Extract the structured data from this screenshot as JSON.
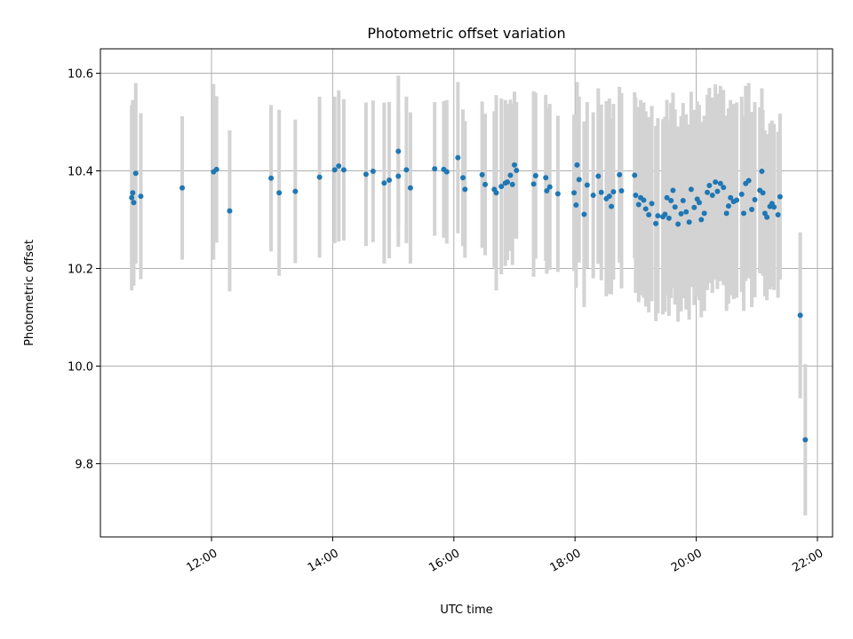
{
  "chart_data": {
    "type": "scatter",
    "title": "Photometric offset variation",
    "xlabel": "UTC time",
    "ylabel": "Photometric offset",
    "xlim": [
      "10:10",
      "22:15"
    ],
    "ylim": [
      9.65,
      10.65
    ],
    "grid": true,
    "x_ticks": [
      "12:00",
      "14:00",
      "16:00",
      "18:00",
      "20:00",
      "22:00"
    ],
    "y_ticks": [
      9.8,
      10.0,
      10.2,
      10.4,
      10.6
    ],
    "colors": {
      "points": "#1f77b4",
      "errorbars": "#d3d3d3"
    },
    "points": [
      {
        "x": "10:41",
        "y": 10.345,
        "err": 0.19
      },
      {
        "x": "10:42",
        "y": 10.355,
        "err": 0.19
      },
      {
        "x": "10:43",
        "y": 10.335,
        "err": 0.17
      },
      {
        "x": "10:45",
        "y": 10.395,
        "err": 0.185
      },
      {
        "x": "10:50",
        "y": 10.348,
        "err": 0.17
      },
      {
        "x": "11:31",
        "y": 10.365,
        "err": 0.147
      },
      {
        "x": "12:02",
        "y": 10.398,
        "err": 0.18
      },
      {
        "x": "12:05",
        "y": 10.403,
        "err": 0.15
      },
      {
        "x": "12:18",
        "y": 10.318,
        "err": 0.165
      },
      {
        "x": "12:59",
        "y": 10.385,
        "err": 0.15
      },
      {
        "x": "13:07",
        "y": 10.355,
        "err": 0.17
      },
      {
        "x": "13:23",
        "y": 10.358,
        "err": 0.147
      },
      {
        "x": "13:47",
        "y": 10.387,
        "err": 0.165
      },
      {
        "x": "14:02",
        "y": 10.402,
        "err": 0.15
      },
      {
        "x": "14:06",
        "y": 10.41,
        "err": 0.155
      },
      {
        "x": "14:11",
        "y": 10.402,
        "err": 0.145
      },
      {
        "x": "14:33",
        "y": 10.393,
        "err": 0.147
      },
      {
        "x": "14:40",
        "y": 10.399,
        "err": 0.145
      },
      {
        "x": "14:51",
        "y": 10.375,
        "err": 0.165
      },
      {
        "x": "14:56",
        "y": 10.381,
        "err": 0.16
      },
      {
        "x": "15:05",
        "y": 10.389,
        "err": 0.145
      },
      {
        "x": "15:05",
        "y": 10.44,
        "err": 0.155
      },
      {
        "x": "15:13",
        "y": 10.402,
        "err": 0.15
      },
      {
        "x": "15:17",
        "y": 10.365,
        "err": 0.155
      },
      {
        "x": "15:41",
        "y": 10.404,
        "err": 0.137
      },
      {
        "x": "15:50",
        "y": 10.403,
        "err": 0.14
      },
      {
        "x": "15:53",
        "y": 10.398,
        "err": 0.147
      },
      {
        "x": "16:04",
        "y": 10.427,
        "err": 0.155
      },
      {
        "x": "16:09",
        "y": 10.386,
        "err": 0.14
      },
      {
        "x": "16:11",
        "y": 10.362,
        "err": 0.14
      },
      {
        "x": "16:28",
        "y": 10.392,
        "err": 0.15
      },
      {
        "x": "16:31",
        "y": 10.372,
        "err": 0.145
      },
      {
        "x": "16:40",
        "y": 10.362,
        "err": 0.16
      },
      {
        "x": "16:42",
        "y": 10.355,
        "err": 0.2
      },
      {
        "x": "16:47",
        "y": 10.368,
        "err": 0.18
      },
      {
        "x": "16:51",
        "y": 10.375,
        "err": 0.17
      },
      {
        "x": "16:53",
        "y": 10.377,
        "err": 0.16
      },
      {
        "x": "16:56",
        "y": 10.391,
        "err": 0.155
      },
      {
        "x": "16:58",
        "y": 10.372,
        "err": 0.165
      },
      {
        "x": "17:00",
        "y": 10.412,
        "err": 0.15
      },
      {
        "x": "17:02",
        "y": 10.401,
        "err": 0.14
      },
      {
        "x": "17:19",
        "y": 10.373,
        "err": 0.19
      },
      {
        "x": "17:21",
        "y": 10.39,
        "err": 0.17
      },
      {
        "x": "17:31",
        "y": 10.386,
        "err": 0.17
      },
      {
        "x": "17:32",
        "y": 10.359,
        "err": 0.17
      },
      {
        "x": "17:35",
        "y": 10.367,
        "err": 0.17
      },
      {
        "x": "17:43",
        "y": 10.353,
        "err": 0.16
      },
      {
        "x": "17:59",
        "y": 10.355,
        "err": 0.16
      },
      {
        "x": "18:01",
        "y": 10.33,
        "err": 0.17
      },
      {
        "x": "18:02",
        "y": 10.412,
        "err": 0.17
      },
      {
        "x": "18:04",
        "y": 10.382,
        "err": 0.17
      },
      {
        "x": "18:09",
        "y": 10.311,
        "err": 0.19
      },
      {
        "x": "18:12",
        "y": 10.371,
        "err": 0.17
      },
      {
        "x": "18:18",
        "y": 10.35,
        "err": 0.17
      },
      {
        "x": "18:23",
        "y": 10.389,
        "err": 0.18
      },
      {
        "x": "18:26",
        "y": 10.356,
        "err": 0.18
      },
      {
        "x": "18:31",
        "y": 10.343,
        "err": 0.2
      },
      {
        "x": "18:34",
        "y": 10.348,
        "err": 0.2
      },
      {
        "x": "18:36",
        "y": 10.327,
        "err": 0.18
      },
      {
        "x": "18:38",
        "y": 10.357,
        "err": 0.18
      },
      {
        "x": "18:44",
        "y": 10.392,
        "err": 0.18
      },
      {
        "x": "18:46",
        "y": 10.359,
        "err": 0.2
      },
      {
        "x": "18:59",
        "y": 10.391,
        "err": 0.17
      },
      {
        "x": "19:00",
        "y": 10.35,
        "err": 0.2
      },
      {
        "x": "19:03",
        "y": 10.331,
        "err": 0.2
      },
      {
        "x": "19:05",
        "y": 10.345,
        "err": 0.2
      },
      {
        "x": "19:08",
        "y": 10.34,
        "err": 0.2
      },
      {
        "x": "19:10",
        "y": 10.322,
        "err": 0.2
      },
      {
        "x": "19:13",
        "y": 10.31,
        "err": 0.2
      },
      {
        "x": "19:16",
        "y": 10.333,
        "err": 0.2
      },
      {
        "x": "19:20",
        "y": 10.292,
        "err": 0.2
      },
      {
        "x": "19:22",
        "y": 10.308,
        "err": 0.2
      },
      {
        "x": "19:27",
        "y": 10.306,
        "err": 0.2
      },
      {
        "x": "19:29",
        "y": 10.311,
        "err": 0.2
      },
      {
        "x": "19:31",
        "y": 10.345,
        "err": 0.2
      },
      {
        "x": "19:33",
        "y": 10.303,
        "err": 0.2
      },
      {
        "x": "19:35",
        "y": 10.339,
        "err": 0.2
      },
      {
        "x": "19:37",
        "y": 10.36,
        "err": 0.2
      },
      {
        "x": "19:39",
        "y": 10.326,
        "err": 0.2
      },
      {
        "x": "19:42",
        "y": 10.291,
        "err": 0.2
      },
      {
        "x": "19:45",
        "y": 10.312,
        "err": 0.2
      },
      {
        "x": "19:47",
        "y": 10.339,
        "err": 0.2
      },
      {
        "x": "19:50",
        "y": 10.316,
        "err": 0.2
      },
      {
        "x": "19:53",
        "y": 10.295,
        "err": 0.2
      },
      {
        "x": "19:55",
        "y": 10.362,
        "err": 0.2
      },
      {
        "x": "19:58",
        "y": 10.325,
        "err": 0.2
      },
      {
        "x": "20:01",
        "y": 10.342,
        "err": 0.2
      },
      {
        "x": "20:03",
        "y": 10.335,
        "err": 0.2
      },
      {
        "x": "20:05",
        "y": 10.3,
        "err": 0.2
      },
      {
        "x": "20:08",
        "y": 10.313,
        "err": 0.2
      },
      {
        "x": "20:11",
        "y": 10.356,
        "err": 0.2
      },
      {
        "x": "20:13",
        "y": 10.37,
        "err": 0.2
      },
      {
        "x": "20:16",
        "y": 10.35,
        "err": 0.2
      },
      {
        "x": "20:19",
        "y": 10.377,
        "err": 0.2
      },
      {
        "x": "20:21",
        "y": 10.358,
        "err": 0.2
      },
      {
        "x": "20:24",
        "y": 10.374,
        "err": 0.2
      },
      {
        "x": "20:27",
        "y": 10.366,
        "err": 0.2
      },
      {
        "x": "20:30",
        "y": 10.313,
        "err": 0.2
      },
      {
        "x": "20:32",
        "y": 10.328,
        "err": 0.2
      },
      {
        "x": "20:34",
        "y": 10.345,
        "err": 0.2
      },
      {
        "x": "20:37",
        "y": 10.337,
        "err": 0.2
      },
      {
        "x": "20:40",
        "y": 10.34,
        "err": 0.2
      },
      {
        "x": "20:45",
        "y": 10.352,
        "err": 0.2
      },
      {
        "x": "20:47",
        "y": 10.313,
        "err": 0.2
      },
      {
        "x": "20:49",
        "y": 10.374,
        "err": 0.2
      },
      {
        "x": "20:52",
        "y": 10.38,
        "err": 0.2
      },
      {
        "x": "20:55",
        "y": 10.321,
        "err": 0.2
      },
      {
        "x": "20:58",
        "y": 10.341,
        "err": 0.2
      },
      {
        "x": "21:03",
        "y": 10.36,
        "err": 0.17
      },
      {
        "x": "21:05",
        "y": 10.399,
        "err": 0.17
      },
      {
        "x": "21:06",
        "y": 10.355,
        "err": 0.17
      },
      {
        "x": "21:08",
        "y": 10.313,
        "err": 0.17
      },
      {
        "x": "21:10",
        "y": 10.305,
        "err": 0.17
      },
      {
        "x": "21:13",
        "y": 10.327,
        "err": 0.17
      },
      {
        "x": "21:15",
        "y": 10.333,
        "err": 0.17
      },
      {
        "x": "21:17",
        "y": 10.326,
        "err": 0.17
      },
      {
        "x": "21:21",
        "y": 10.31,
        "err": 0.17
      },
      {
        "x": "21:23",
        "y": 10.347,
        "err": 0.17
      },
      {
        "x": "21:43",
        "y": 10.104,
        "err": 0.17
      },
      {
        "x": "21:48",
        "y": 9.849,
        "err": 0.155
      }
    ]
  }
}
